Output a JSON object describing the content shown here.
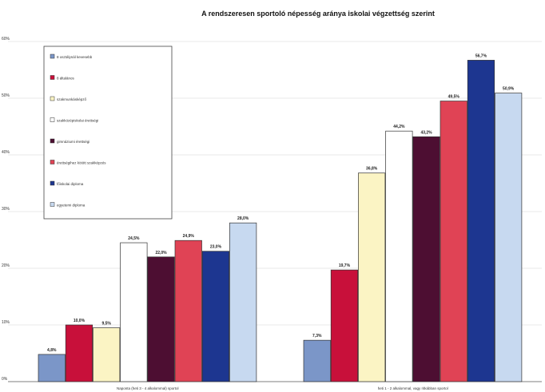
{
  "chart_data": {
    "type": "bar",
    "title": "A rendszeresen sportoló népesség aránya iskolai végzettség szerint",
    "xlabel": "",
    "ylabel": "",
    "ylim": [
      0,
      60
    ],
    "yticks": [
      "0%",
      "10%",
      "20%",
      "30%",
      "40%",
      "50%",
      "60%"
    ],
    "grid": true,
    "legend_position": "top-left",
    "categories": [
      "Naponta (heti 3 - 4 alkalommal) sportol",
      "heti 1 - 2 alkalommal, vagy ritkábban sportol"
    ],
    "series": [
      {
        "name": "8 osztálynál kevesebb",
        "color": "#7b96c8",
        "values": [
          4.8,
          7.3
        ],
        "labels": [
          "4,8%",
          "7,3%"
        ]
      },
      {
        "name": "8 általános",
        "color": "#c8103a",
        "values": [
          10.0,
          19.7
        ],
        "labels": [
          "10,0%",
          "19,7%"
        ]
      },
      {
        "name": "szakmunkásképző",
        "color": "#fbf4c4",
        "values": [
          9.5,
          36.8
        ],
        "labels": [
          "9,5%",
          "36,8%"
        ]
      },
      {
        "name": "szakközépiskolai érettségi",
        "color": "#ffffff",
        "values": [
          24.5,
          44.2
        ],
        "labels": [
          "24,5%",
          "44,2%"
        ]
      },
      {
        "name": "gimnáziumi érettségi",
        "color": "#4d0e32",
        "values": [
          22.0,
          43.2
        ],
        "labels": [
          "22,0%",
          "43,2%"
        ]
      },
      {
        "name": "érettségihez kötött szakképzés",
        "color": "#e04355",
        "values": [
          24.9,
          49.5
        ],
        "labels": [
          "24,9%",
          "49,5%"
        ]
      },
      {
        "name": "főiskolai diploma",
        "color": "#1d3690",
        "values": [
          23.0,
          56.7
        ],
        "labels": [
          "23,0%",
          "56,7%"
        ]
      },
      {
        "name": "egyetemi diploma",
        "color": "#c7d9f0",
        "values": [
          28.0,
          50.9
        ],
        "labels": [
          "28,0%",
          "50,9%"
        ]
      }
    ]
  }
}
